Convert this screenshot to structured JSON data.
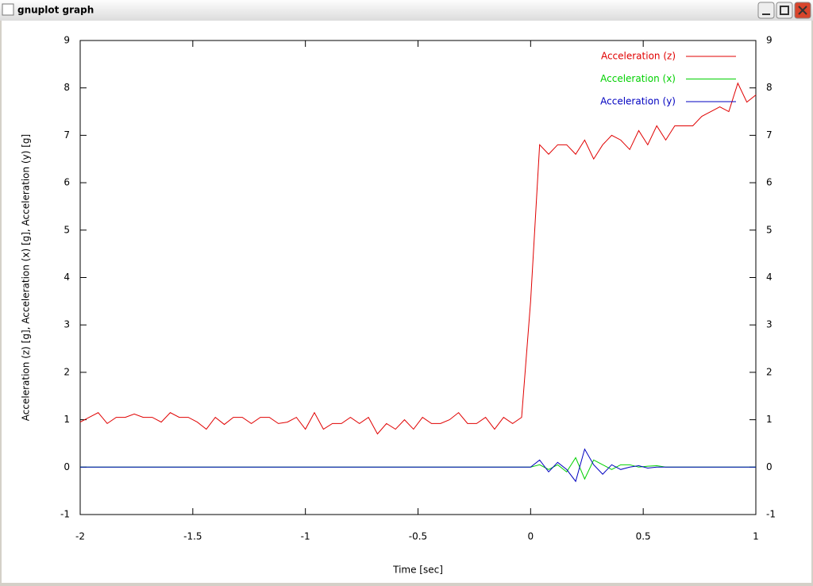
{
  "window": {
    "title": "gnuplot graph"
  },
  "chart_data": {
    "type": "line",
    "xlabel": "Time [sec]",
    "ylabel": "Acceleration (z) [g], Acceleration (x) [g], Acceleration (y) [g]",
    "x": [
      -2,
      -1.96,
      -1.92,
      -1.88,
      -1.84,
      -1.8,
      -1.76,
      -1.72,
      -1.68,
      -1.64,
      -1.6,
      -1.56,
      -1.52,
      -1.48,
      -1.44,
      -1.4,
      -1.36,
      -1.32,
      -1.28,
      -1.24,
      -1.2,
      -1.16,
      -1.12,
      -1.08,
      -1.04,
      -1,
      -0.96,
      -0.92,
      -0.88,
      -0.84,
      -0.8,
      -0.76,
      -0.72,
      -0.68,
      -0.64,
      -0.6,
      -0.56,
      -0.52,
      -0.48,
      -0.44,
      -0.4,
      -0.36,
      -0.32,
      -0.28,
      -0.24,
      -0.2,
      -0.16,
      -0.12,
      -0.08,
      -0.04,
      0,
      0.04,
      0.08,
      0.12,
      0.16,
      0.2,
      0.24,
      0.28,
      0.32,
      0.36,
      0.4,
      0.44,
      0.48,
      0.52,
      0.56,
      0.6,
      0.64,
      0.68,
      0.72,
      0.76,
      0.8,
      0.84,
      0.88,
      0.92,
      0.96,
      1
    ],
    "series": [
      {
        "name": "Acceleration (z)",
        "color": "#e00000",
        "values": [
          0.95,
          1.05,
          1.15,
          0.92,
          1.05,
          1.05,
          1.12,
          1.05,
          1.05,
          0.95,
          1.15,
          1.05,
          1.05,
          0.95,
          0.8,
          1.05,
          0.9,
          1.05,
          1.05,
          0.92,
          1.05,
          1.05,
          0.92,
          0.95,
          1.05,
          0.8,
          1.15,
          0.8,
          0.92,
          0.92,
          1.05,
          0.92,
          1.05,
          0.7,
          0.92,
          0.8,
          1.0,
          0.8,
          1.05,
          0.92,
          0.92,
          1.0,
          1.15,
          0.92,
          0.92,
          1.05,
          0.8,
          1.05,
          0.92,
          1.05,
          3.5,
          6.8,
          6.6,
          6.8,
          6.8,
          6.6,
          6.9,
          6.5,
          6.8,
          7.0,
          6.9,
          6.7,
          7.1,
          6.8,
          7.2,
          6.9,
          7.2,
          7.2,
          7.2,
          7.4,
          7.5,
          7.6,
          7.5,
          8.1,
          7.7,
          7.85
        ]
      },
      {
        "name": "Acceleration (x)",
        "color": "#00d000",
        "values": [
          0,
          0,
          0,
          0,
          0,
          0,
          0,
          0,
          0,
          0,
          0,
          0,
          0,
          0,
          0,
          0,
          0,
          0,
          0,
          0,
          0,
          0,
          0,
          0,
          0,
          0,
          0,
          0,
          0,
          0,
          0,
          0,
          0,
          0,
          0,
          0,
          0,
          0,
          0,
          0,
          0,
          0,
          0,
          0,
          0,
          0,
          0,
          0,
          0,
          0,
          0,
          0.05,
          -0.05,
          0.05,
          -0.1,
          0.2,
          -0.25,
          0.15,
          0.05,
          -0.05,
          0.05,
          0.05,
          0,
          0.02,
          0.03,
          0,
          0,
          0,
          0,
          0,
          0,
          0,
          0,
          0,
          0,
          0
        ]
      },
      {
        "name": "Acceleration (y)",
        "color": "#0000c0",
        "values": [
          0,
          0,
          0,
          0,
          0,
          0,
          0,
          0,
          0,
          0,
          0,
          0,
          0,
          0,
          0,
          0,
          0,
          0,
          0,
          0,
          0,
          0,
          0,
          0,
          0,
          0,
          0,
          0,
          0,
          0,
          0,
          0,
          0,
          0,
          0,
          0,
          0,
          0,
          0,
          0,
          0,
          0,
          0,
          0,
          0,
          0,
          0,
          0,
          0,
          0,
          0,
          0.15,
          -0.1,
          0.1,
          -0.05,
          -0.3,
          0.38,
          0.05,
          -0.15,
          0.05,
          -0.05,
          0,
          0.03,
          -0.02,
          0,
          0,
          0,
          0,
          0,
          0,
          0,
          0,
          0,
          0,
          0,
          0
        ]
      }
    ],
    "xlim": [
      -2,
      1
    ],
    "xticks": [
      -2,
      -1.5,
      -1,
      -0.5,
      0,
      0.5,
      1
    ],
    "ylim": [
      -1,
      9
    ],
    "yticks": [
      -1,
      0,
      1,
      2,
      3,
      4,
      5,
      6,
      7,
      8,
      9
    ],
    "legend": "upper right"
  }
}
